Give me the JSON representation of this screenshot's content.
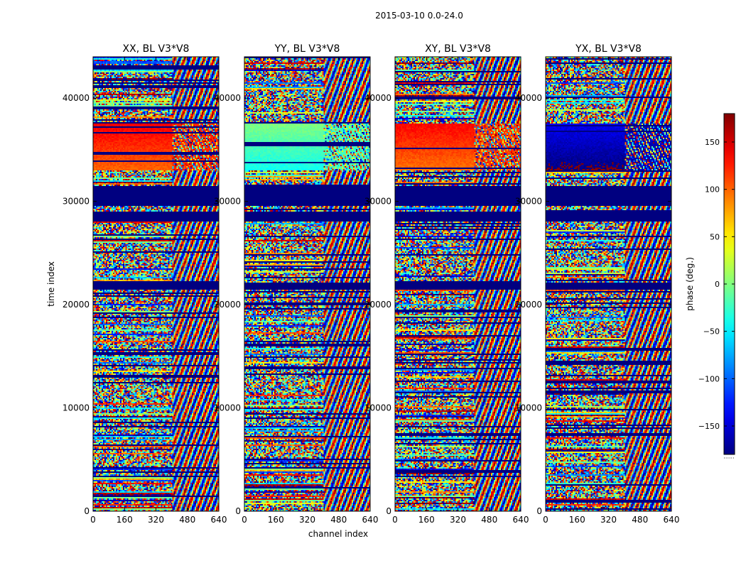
{
  "chart_data": {
    "type": "heatmap",
    "suptitle": "2015-03-10 0.0-24.0",
    "xlabel": "channel index",
    "ylabel": "time index",
    "xlim": [
      0,
      640
    ],
    "ylim": [
      0,
      44000
    ],
    "xticks": [
      "0",
      "160",
      "320",
      "480",
      "640"
    ],
    "xtick_values": [
      0,
      160,
      320,
      480,
      640
    ],
    "yticks": [
      "0",
      "10000",
      "20000",
      "30000",
      "40000"
    ],
    "ytick_values": [
      0,
      10000,
      20000,
      30000,
      40000
    ],
    "colormap": "jet",
    "colorbar": {
      "label": "phase (deg.)",
      "range": [
        -180,
        180
      ],
      "ticks": [
        "−150",
        "−100",
        "−50",
        "0",
        "50",
        "100",
        "150"
      ],
      "tick_values": [
        -150,
        -100,
        -50,
        0,
        50,
        100,
        150
      ],
      "footer": "······"
    },
    "panels": [
      {
        "title": "XX, BL V3*V8",
        "coherent_phase_band": [
          33000,
          37500
        ],
        "coherent_phase_value": 120
      },
      {
        "title": "YY, BL V3*V8",
        "coherent_phase_band": [
          33000,
          37500
        ],
        "coherent_phase_value": -20
      },
      {
        "title": "XY, BL V3*V8",
        "coherent_phase_band": [
          33000,
          37500
        ],
        "coherent_phase_value": 115
      },
      {
        "title": "YX, BL V3*V8",
        "coherent_phase_band": [
          33000,
          37500
        ],
        "coherent_phase_value": -160
      }
    ],
    "flagged_time_ranges": [
      [
        28000,
        29000
      ],
      [
        29500,
        31500
      ],
      [
        21500,
        22200
      ]
    ],
    "flag_value": -180
  }
}
